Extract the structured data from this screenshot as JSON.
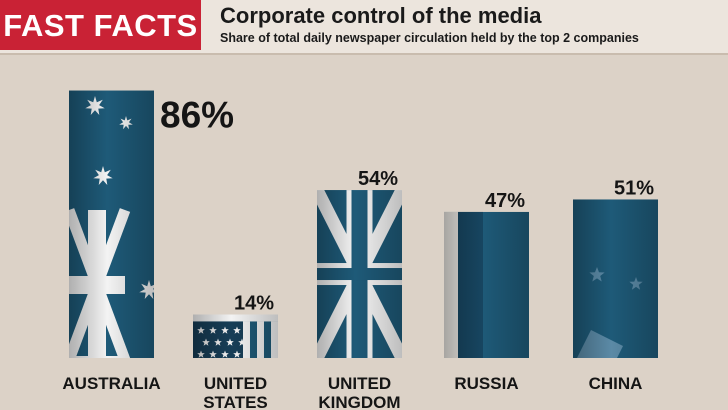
{
  "header": {
    "badge": "FAST FACTS",
    "title": "Corporate control of the media",
    "subtitle": "Share of total daily newspaper circulation held by the top 2 companies"
  },
  "colors": {
    "badge": "#c92235",
    "bar": "#1e5a78",
    "background": "#dcd2c7"
  },
  "chart_data": {
    "type": "bar",
    "title": "Corporate control of the media",
    "subtitle": "Share of total daily newspaper circulation held by the top 2 companies",
    "categories": [
      "AUSTRALIA",
      "UNITED STATES",
      "UNITED KINGDOM",
      "RUSSIA",
      "CHINA"
    ],
    "category_lines": [
      [
        "AUSTRALIA"
      ],
      [
        "UNITED",
        "STATES"
      ],
      [
        "UNITED",
        "KINGDOM"
      ],
      [
        "RUSSIA"
      ],
      [
        "CHINA"
      ]
    ],
    "values": [
      86,
      14,
      54,
      47,
      51
    ],
    "value_labels": [
      "86%",
      "14%",
      "54%",
      "47%",
      "51%"
    ],
    "bar_styles": [
      "australia-flag",
      "us-flag",
      "uk-flag",
      "russia-flag",
      "china-flag"
    ],
    "ylim": [
      0,
      100
    ],
    "unit": "%",
    "grid": false,
    "legend": "none"
  }
}
